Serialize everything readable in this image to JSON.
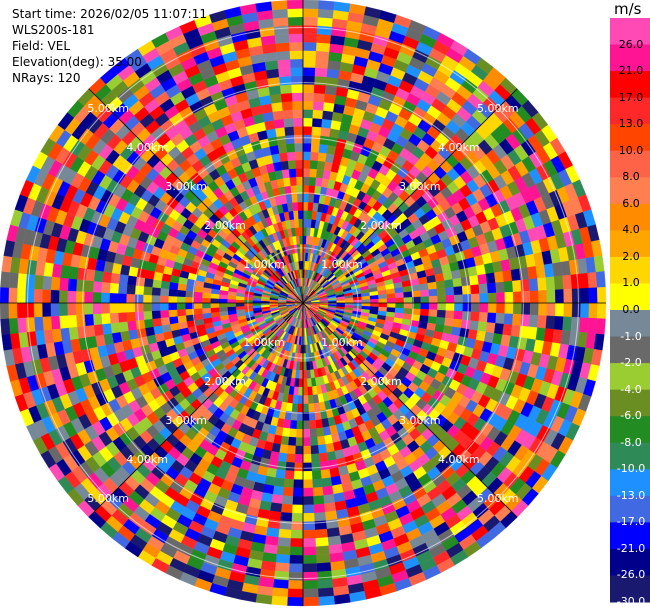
{
  "info": {
    "start_time": "Start time: 2026/02/05 11:07:11",
    "instrument": "WLS200s-181",
    "field": "Field: VEL",
    "elevation": "Elevation(deg): 35.00",
    "nrays": "NRays: 120"
  },
  "colorbar": {
    "unit": "m/s",
    "labels": [
      "26.0",
      "21.0",
      "17.0",
      "13.0",
      "10.0",
      "8.0",
      "6.0",
      "4.0",
      "2.0",
      "1.0",
      "0.0",
      "-1.0",
      "-2.0",
      "-4.0",
      "-6.0",
      "-8.0",
      "-10.0",
      "-13.0",
      "-17.0",
      "-21.0",
      "-26.0",
      "-30.0"
    ],
    "colors": [
      "#ff49b4",
      "#ff1493",
      "#ff0000",
      "#ff2828",
      "#ff4500",
      "#ff6347",
      "#ff7f50",
      "#ff8c00",
      "#ffa500",
      "#ffd700",
      "#ffff00",
      "#778899",
      "#696969",
      "#9acd32",
      "#6b8e23",
      "#228b22",
      "#2e8b57",
      "#1e90ff",
      "#4169e1",
      "#0000ff",
      "#00008b",
      "#191970"
    ]
  },
  "chart_data": {
    "type": "ppi",
    "field": "VEL",
    "unit": "m/s",
    "nrays": 120,
    "range_rings_km": [
      "1.00km",
      "2.00km",
      "3.00km",
      "4.00km",
      "5.00km"
    ],
    "max_range_km": 5.5
  }
}
